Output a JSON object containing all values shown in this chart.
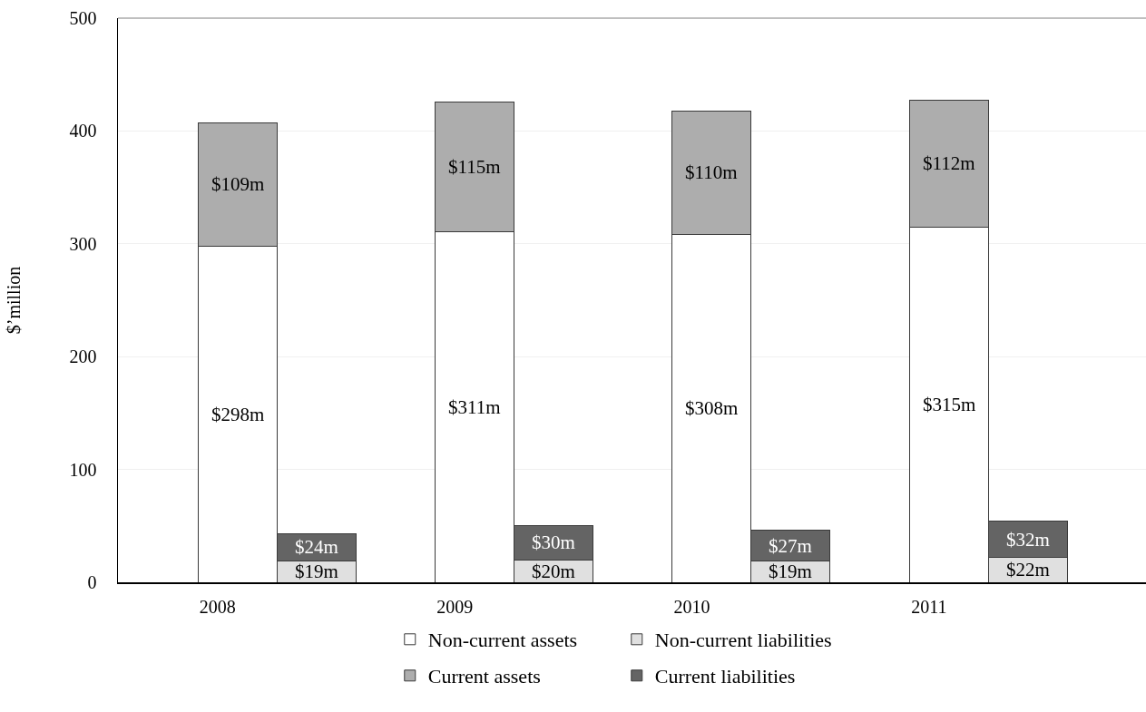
{
  "chart_data": {
    "type": "bar",
    "ylabel": "$’million",
    "categories": [
      "2008",
      null,
      "2009",
      null,
      "2010",
      null,
      "2011",
      null
    ],
    "series": [
      {
        "name": "Non-current assets",
        "color": "#ffffff",
        "values": [
          298,
          null,
          311,
          null,
          308,
          null,
          315,
          null
        ],
        "value_labels": [
          "$298m",
          null,
          "$311m",
          null,
          "$308m",
          null,
          "$315m",
          null
        ]
      },
      {
        "name": "Non-current liabilities",
        "color": "#e0e0e0",
        "values": [
          null,
          19,
          null,
          20,
          null,
          19,
          null,
          22
        ],
        "value_labels": [
          null,
          "$19m",
          null,
          "$20m",
          null,
          "$19m",
          null,
          "$22m"
        ]
      },
      {
        "name": "Current assets",
        "color": "#adadad",
        "values": [
          109,
          null,
          115,
          null,
          110,
          null,
          112,
          null
        ],
        "value_labels": [
          "$109m",
          null,
          "$115m",
          null,
          "$110m",
          null,
          "$112m",
          null
        ]
      },
      {
        "name": "Current liabilities",
        "color": "#646464",
        "values": [
          null,
          24,
          null,
          30,
          null,
          27,
          null,
          32
        ],
        "value_labels": [
          null,
          "$24m",
          null,
          "$30m",
          null,
          "$27m",
          null,
          "$32m"
        ]
      }
    ],
    "stacked": true,
    "ylim": [
      0,
      500
    ],
    "yticks": [
      0,
      100,
      200,
      300,
      400,
      500
    ],
    "grid": "y",
    "legend": "bottom"
  }
}
